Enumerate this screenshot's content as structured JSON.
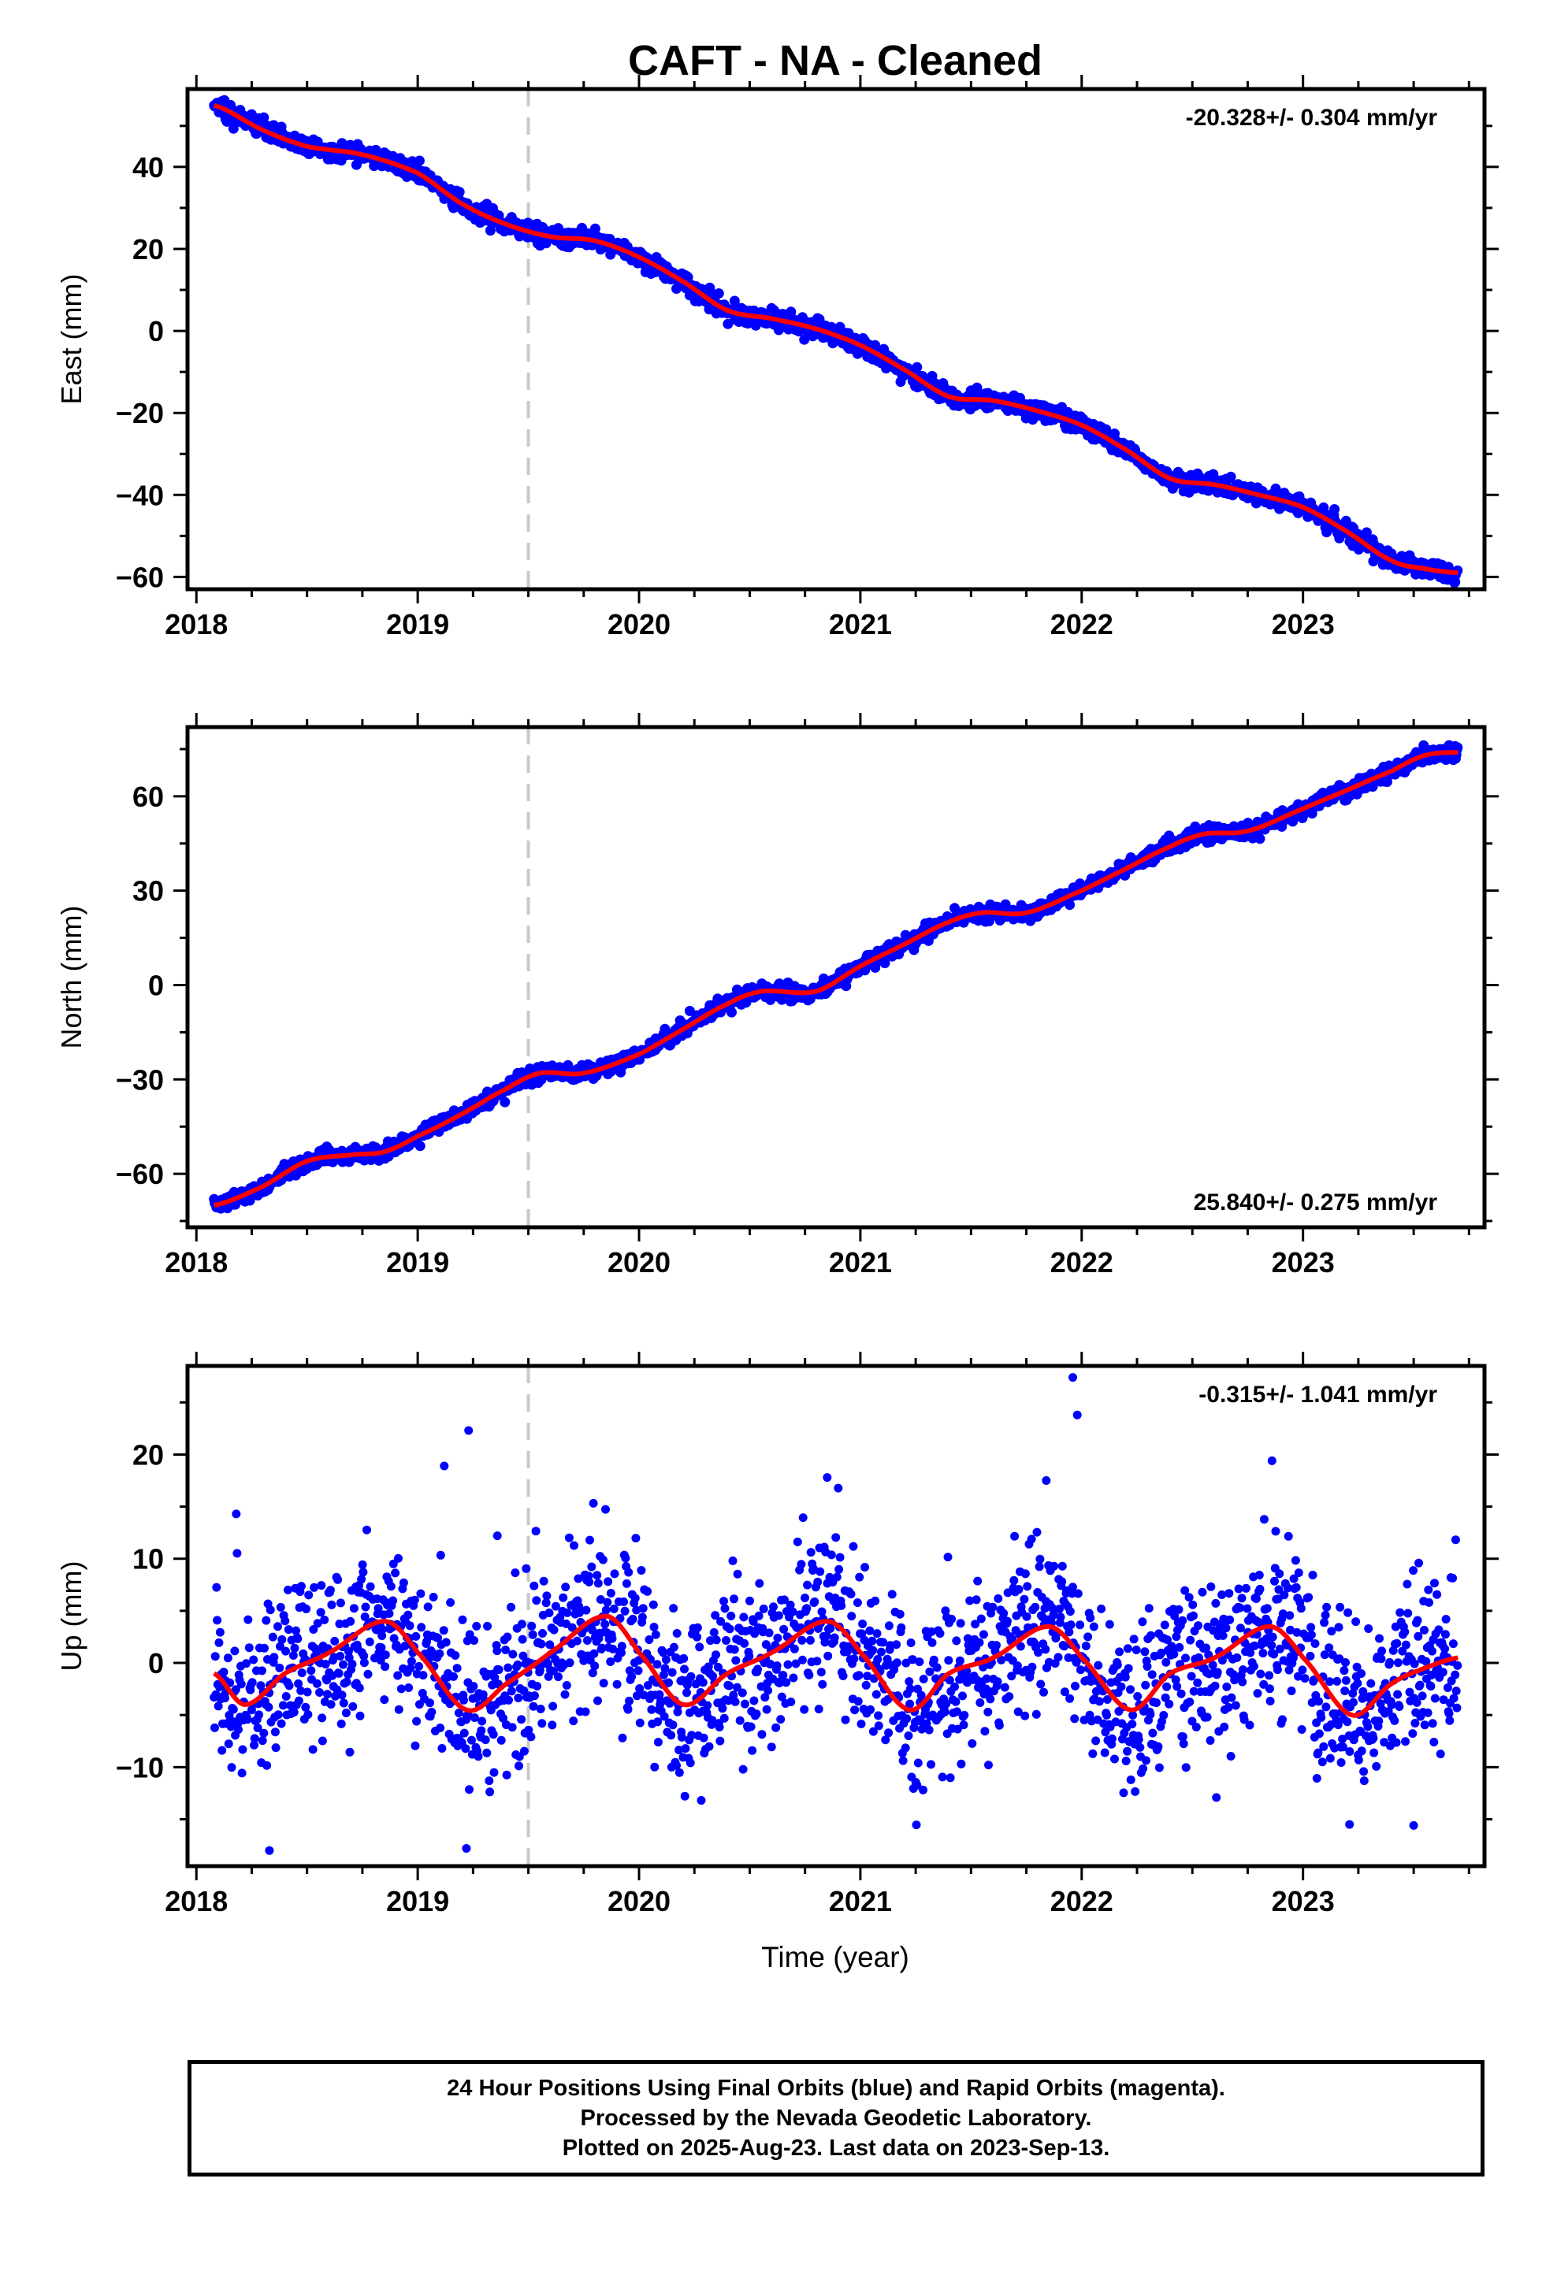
{
  "title": "CAFT  - NA - Cleaned",
  "xlabel": "Time (year)",
  "colors": {
    "data": "#0000ff",
    "fit": "#ff0000",
    "offset_line": "#c8c8c8"
  },
  "footer": {
    "line1": "24 Hour Positions Using Final Orbits (blue) and Rapid Orbits (magenta).",
    "line2": "Processed by the Nevada Geodetic Laboratory.",
    "line3": "Plotted on 2025-Aug-23. Last data on 2023-Sep-13."
  },
  "chart_data": [
    {
      "type": "scatter",
      "component": "east",
      "ylabel": "East (mm)",
      "velocity_label": "-20.328+/- 0.304 mm/yr",
      "velocity_position": "top-right",
      "xlim": [
        2017.96,
        2023.82
      ],
      "ylim": [
        -63,
        59
      ],
      "xticks": [
        2018,
        2019,
        2020,
        2021,
        2022,
        2023
      ],
      "yticks": [
        -60,
        -40,
        -20,
        0,
        20,
        40
      ],
      "equipment_change": 2019.5,
      "data_start": 2018.08,
      "data_end": 2023.7,
      "scatter_sd": 1.1,
      "fit_knots": {
        "x": [
          2018.08,
          2018.3,
          2018.5,
          2018.75,
          2019.0,
          2019.2,
          2019.4,
          2019.6,
          2019.8,
          2020.0,
          2020.2,
          2020.4,
          2020.6,
          2020.8,
          2021.0,
          2021.2,
          2021.4,
          2021.6,
          2021.8,
          2022.0,
          2022.2,
          2022.4,
          2022.6,
          2022.8,
          2023.0,
          2023.2,
          2023.4,
          2023.55,
          2023.7
        ],
        "y": [
          55,
          49,
          45,
          43,
          38.5,
          31,
          26,
          23,
          22,
          18,
          12,
          5,
          3,
          0.5,
          -3.5,
          -9.5,
          -16,
          -17,
          -19.5,
          -23,
          -29,
          -36,
          -37.5,
          -40,
          -43,
          -49,
          -56,
          -58,
          -59
        ]
      }
    },
    {
      "type": "scatter",
      "component": "north",
      "ylabel": "North (mm)",
      "velocity_label": "25.840+/- 0.275 mm/yr",
      "velocity_position": "bottom-right",
      "xlim": [
        2017.96,
        2023.82
      ],
      "ylim": [
        -77,
        82
      ],
      "xticks": [
        2018,
        2019,
        2020,
        2021,
        2022,
        2023
      ],
      "yticks": [
        -60,
        -30,
        0,
        30,
        60
      ],
      "equipment_change": 2019.5,
      "data_start": 2018.08,
      "data_end": 2023.7,
      "scatter_sd": 1.2,
      "fit_knots": {
        "x": [
          2018.08,
          2018.3,
          2018.5,
          2018.7,
          2018.85,
          2019.0,
          2019.2,
          2019.4,
          2019.55,
          2019.75,
          2020.0,
          2020.2,
          2020.4,
          2020.55,
          2020.8,
          2021.0,
          2021.2,
          2021.4,
          2021.55,
          2021.75,
          2022.0,
          2022.2,
          2022.4,
          2022.55,
          2022.75,
          2023.0,
          2023.2,
          2023.4,
          2023.55,
          2023.7
        ],
        "y": [
          -70,
          -64,
          -56,
          -54,
          -53,
          -48,
          -41,
          -33,
          -28,
          -28,
          -22,
          -14,
          -6,
          -2,
          -2,
          6,
          13,
          20,
          23,
          23,
          30,
          37,
          44,
          48,
          49,
          56,
          62,
          68,
          73,
          74
        ]
      }
    },
    {
      "type": "scatter",
      "component": "up",
      "ylabel": "Up (mm)",
      "velocity_label": "-0.315+/- 1.041 mm/yr",
      "velocity_position": "top-right",
      "xlim": [
        2017.96,
        2023.82
      ],
      "ylim": [
        -19.5,
        28.5
      ],
      "xticks": [
        2018,
        2019,
        2020,
        2021,
        2022,
        2023
      ],
      "yticks": [
        -10,
        0,
        10,
        20
      ],
      "equipment_change": 2019.5,
      "data_start": 2018.08,
      "data_end": 2023.7,
      "scatter_sd": 4.0,
      "fit_knots": {
        "x": [
          2018.08,
          2018.22,
          2018.4,
          2018.6,
          2018.85,
          2019.0,
          2019.22,
          2019.4,
          2019.6,
          2019.85,
          2020.0,
          2020.2,
          2020.4,
          2020.6,
          2020.85,
          2021.0,
          2021.22,
          2021.4,
          2021.6,
          2021.85,
          2022.0,
          2022.22,
          2022.4,
          2022.6,
          2022.85,
          2023.0,
          2023.22,
          2023.4,
          2023.55,
          2023.7
        ],
        "y": [
          -1,
          -4,
          -1,
          1,
          4,
          1,
          -4.5,
          -2,
          1,
          4.5,
          1,
          -4,
          -1,
          1,
          4,
          1,
          -4.5,
          -1,
          0.5,
          3.5,
          0.5,
          -4.5,
          -1,
          0.5,
          3.5,
          0.5,
          -5,
          -2,
          -0.5,
          0.5
        ]
      },
      "outliers": [
        {
          "x": 2018.18,
          "y": 14.3
        },
        {
          "x": 2018.33,
          "y": -18.0
        },
        {
          "x": 2019.12,
          "y": 18.9
        },
        {
          "x": 2019.23,
          "y": 22.3
        },
        {
          "x": 2019.22,
          "y": -17.8
        },
        {
          "x": 2019.36,
          "y": 12.2
        },
        {
          "x": 2020.85,
          "y": 17.8
        },
        {
          "x": 2021.84,
          "y": 17.5
        },
        {
          "x": 2021.96,
          "y": 27.4
        },
        {
          "x": 2021.98,
          "y": 23.8
        },
        {
          "x": 2022.86,
          "y": 19.4
        },
        {
          "x": 2023.21,
          "y": -15.5
        },
        {
          "x": 2023.5,
          "y": -15.6
        }
      ]
    }
  ]
}
